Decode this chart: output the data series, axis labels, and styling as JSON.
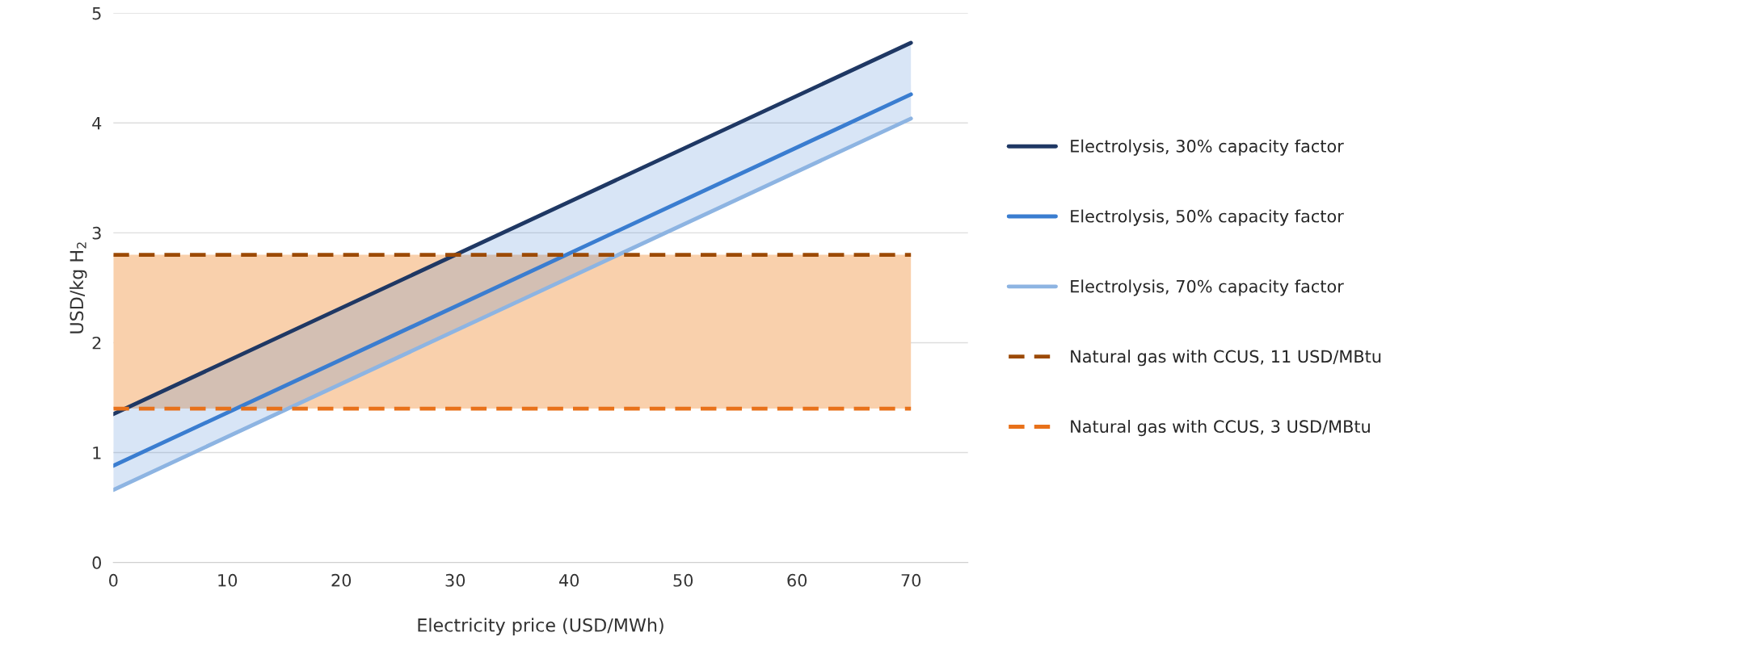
{
  "chart_data": {
    "type": "line",
    "xlabel": "Electricity price (USD/MWh)",
    "ylabel": "USD/kg H$_{2}$",
    "x": [
      0,
      70
    ],
    "xlim": [
      0,
      75
    ],
    "xticks": [
      0,
      10,
      20,
      30,
      40,
      50,
      60,
      70
    ],
    "ylim": [
      0,
      5
    ],
    "yticks": [
      0,
      1,
      2,
      3,
      4,
      5
    ],
    "grid": "y",
    "legend": "right",
    "series": [
      {
        "name": "Electrolysis, 30% capacity factor",
        "color": "#1f3864",
        "values": [
          1.35,
          4.73
        ]
      },
      {
        "name": "Electrolysis, 50% capacity factor",
        "color": "#3a7dd0",
        "values": [
          0.88,
          4.26
        ],
        "lower": [
          0.66,
          4.04
        ],
        "upper": [
          1.35,
          4.73
        ]
      },
      {
        "name": "Electrolysis, 70% capacity factor",
        "color": "#8db4e2",
        "values": [
          0.66,
          4.04
        ]
      },
      {
        "name": "Natural gas with CCUS, 11 USD/MBtu",
        "color": "#9c4a06",
        "values": [
          2.8,
          2.8
        ],
        "line_style": "dashed"
      },
      {
        "name": "Natural gas with CCUS, 3 USD/MBtu",
        "color": "#e8711a",
        "values": [
          1.4,
          1.4
        ],
        "line_style": "dashed"
      }
    ],
    "bands": [
      {
        "axis": "y",
        "from": 1.4,
        "to": 2.8,
        "color": "#f9d0ac"
      }
    ]
  }
}
